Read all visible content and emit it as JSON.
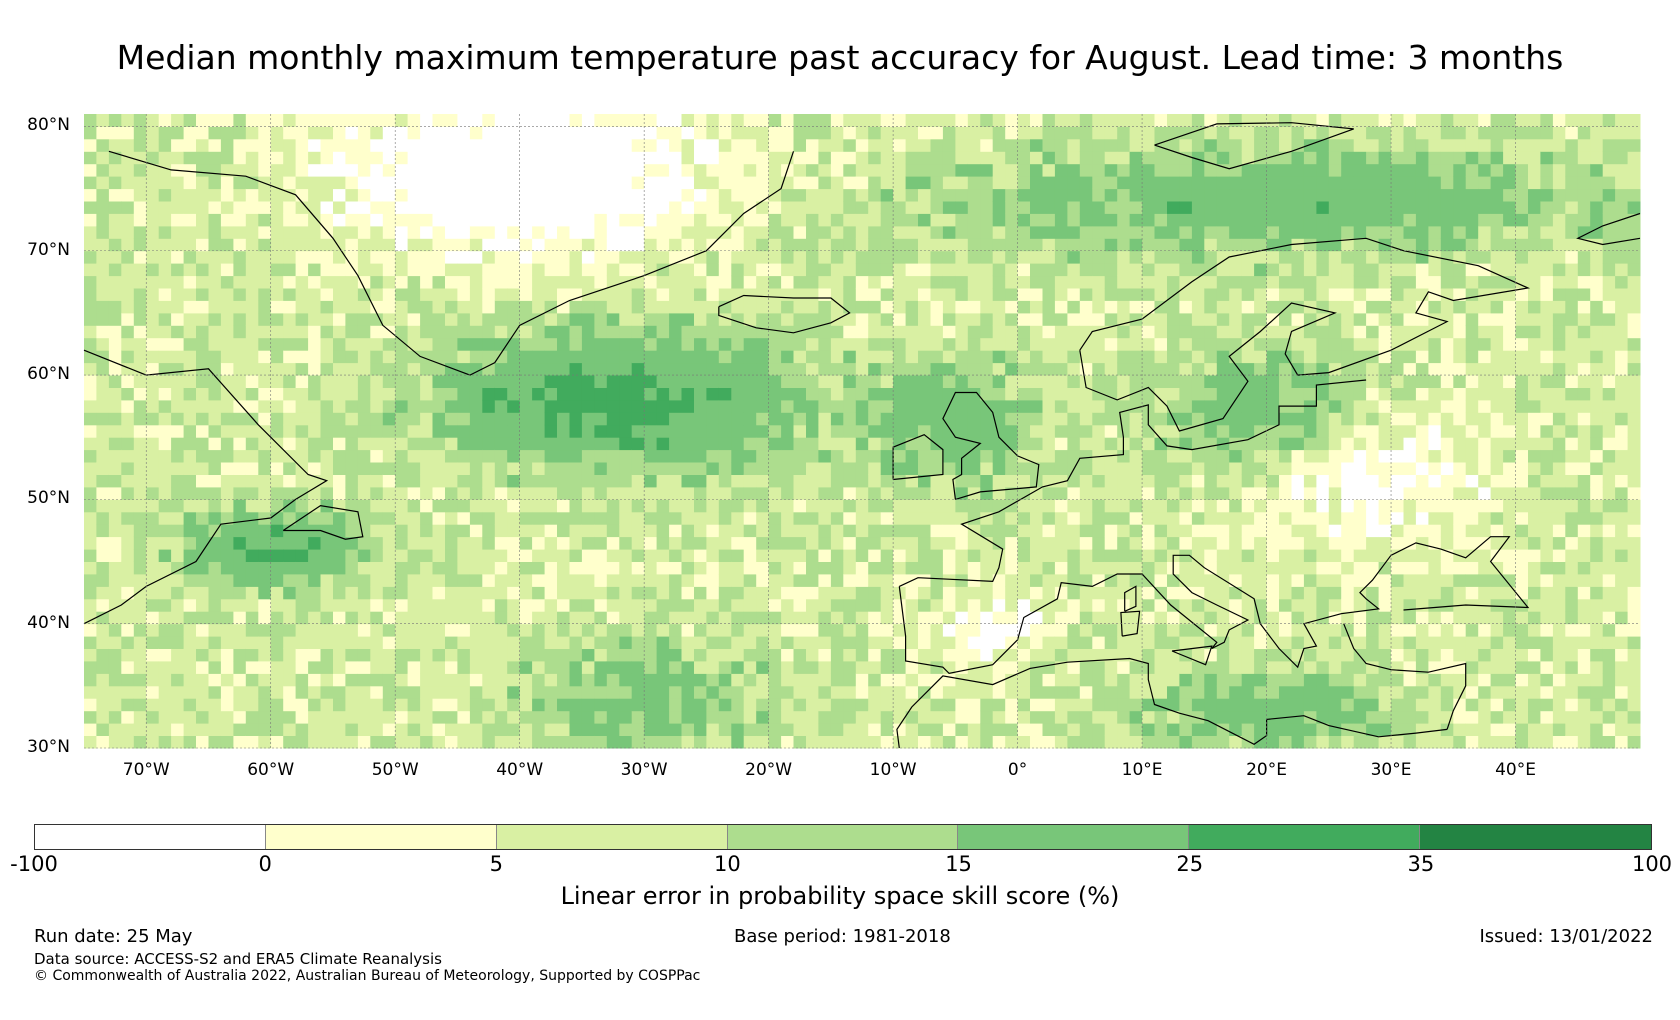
{
  "title": "Median monthly maximum temperature past accuracy for August. Lead time: 3 months",
  "map": {
    "lon_range": [
      -75,
      50
    ],
    "lat_range": [
      30,
      81
    ],
    "lat_ticks": [
      "80°N",
      "70°N",
      "60°N",
      "50°N",
      "40°N",
      "30°N"
    ],
    "lon_ticks": [
      "70°W",
      "60°W",
      "50°W",
      "40°W",
      "30°W",
      "20°W",
      "10°W",
      "0°",
      "10°E",
      "20°E",
      "30°E",
      "40°E"
    ],
    "land_color": "#000000",
    "grid": "dotted"
  },
  "colorbar": {
    "title": "Linear error in probability space skill score (%)",
    "tick_labels": [
      "-100",
      "0",
      "5",
      "10",
      "15",
      "25",
      "35",
      "100"
    ],
    "bins": [
      {
        "range": "-100 to 0",
        "color": "#ffffff"
      },
      {
        "range": "0 to 5",
        "color": "#ffffcc"
      },
      {
        "range": "5 to 10",
        "color": "#d9f0a3"
      },
      {
        "range": "10 to 15",
        "color": "#addd8e"
      },
      {
        "range": "15 to 25",
        "color": "#78c679"
      },
      {
        "range": "25 to 35",
        "color": "#41ab5d"
      },
      {
        "range": "35 to 100",
        "color": "#238443"
      }
    ]
  },
  "footer": {
    "run_date": "Run date: 25 May",
    "base_period": "Base period: 1981-2018",
    "issued": "Issued: 13/01/2022",
    "data_source": "Data source: ACCESS-S2 and ERA5 Climate Reanalysis",
    "copyright": "© Commonwealth of Australia 2022, Australian Bureau of Meteorology, Supported by COSPPac"
  }
}
